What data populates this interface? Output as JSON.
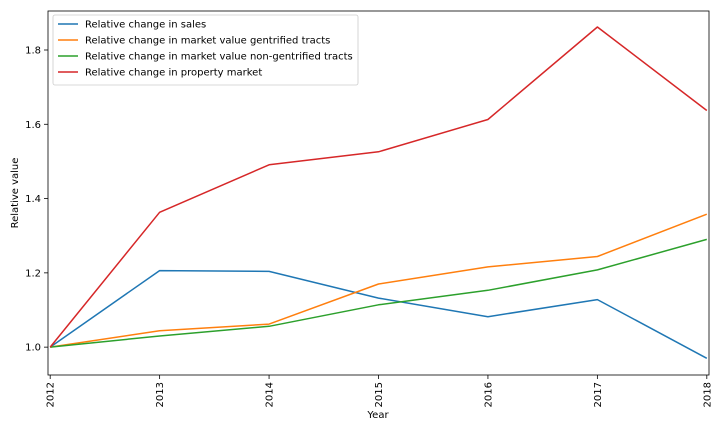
{
  "chart_data": {
    "type": "line",
    "x": [
      2012,
      2013,
      2014,
      2015,
      2016,
      2017,
      2018
    ],
    "xlabel": "Year",
    "ylabel": "Relative value",
    "xlim": [
      2011.98,
      2018.02
    ],
    "ylim": [
      0.925,
      1.905
    ],
    "yticks": [
      1.0,
      1.2,
      1.4,
      1.6,
      1.8
    ],
    "ytick_labels": [
      "1.0",
      "1.2",
      "1.4",
      "1.6",
      "1.8"
    ],
    "xtick_labels": [
      "2012",
      "2013",
      "2014",
      "2015",
      "2016",
      "2017",
      "2018"
    ],
    "legend": "top-left",
    "grid": false,
    "series": [
      {
        "name": "Relative change in sales",
        "color": "#1f77b4",
        "values": [
          1.0,
          1.206,
          1.204,
          1.132,
          1.082,
          1.128,
          0.97
        ]
      },
      {
        "name": "Relative change in market value gentrified tracts",
        "color": "#ff7f0e",
        "values": [
          1.0,
          1.044,
          1.062,
          1.17,
          1.216,
          1.244,
          1.358
        ]
      },
      {
        "name": "Relative change in market value non-gentrified tracts",
        "color": "#2ca02c",
        "values": [
          1.0,
          1.03,
          1.056,
          1.114,
          1.153,
          1.208,
          1.29
        ]
      },
      {
        "name": "Relative change in property market",
        "color": "#d62728",
        "values": [
          1.0,
          1.363,
          1.491,
          1.526,
          1.613,
          1.862,
          1.637
        ]
      }
    ]
  }
}
